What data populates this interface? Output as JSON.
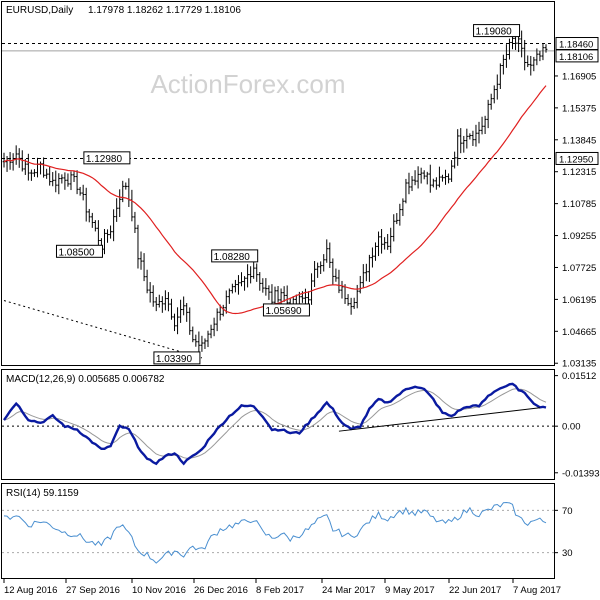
{
  "chart_data": [
    {
      "type": "candlestick",
      "panel": "price",
      "symbol_text": "EURUSD,Daily",
      "ohlc_text": "1.17978 1.18262 1.17729 1.18106",
      "watermark": "ActionForex.com",
      "ylim": [
        1.0305,
        1.2045
      ],
      "y_ticks": [
        "1.18106",
        "1.16905",
        "1.15375",
        "1.13845",
        "1.12315",
        "1.10785",
        "1.09255",
        "1.07725",
        "1.06195",
        "1.04665",
        "1.03135"
      ],
      "y_tick_values": [
        1.18106,
        1.16905,
        1.15375,
        1.13845,
        1.12315,
        1.10785,
        1.09255,
        1.07725,
        1.06195,
        1.04665,
        1.03135
      ],
      "horizontal_levels": [
        {
          "value": 1.1846,
          "label": "1.18460",
          "style": "dashed"
        },
        {
          "value": 1.1295,
          "label": "1.12950",
          "style": "dashed"
        },
        {
          "value": 1.18106,
          "label": "1.18106",
          "style": "solid-grey"
        }
      ],
      "annotations": [
        {
          "label": "1.19080",
          "value": 1.1908,
          "bar": 168
        },
        {
          "label": "1.12980",
          "value": 1.1298,
          "bar": 42
        },
        {
          "label": "1.08500",
          "value": 1.085,
          "bar": 33
        },
        {
          "label": "1.08280",
          "value": 1.0828,
          "bar": 82
        },
        {
          "label": "1.05690",
          "value": 1.0569,
          "bar": 99
        },
        {
          "label": "1.03390",
          "value": 1.0339,
          "bar": 65
        }
      ],
      "trendline": {
        "from": {
          "bar": 0,
          "value": 1.0614
        },
        "to": {
          "bar": 65,
          "value": 1.0339
        }
      },
      "moving_average_color": "#e02020",
      "candle_color": "#000000",
      "keypoints": [
        [
          0,
          1.128
        ],
        [
          4,
          1.132
        ],
        [
          8,
          1.122
        ],
        [
          12,
          1.126
        ],
        [
          16,
          1.118
        ],
        [
          20,
          1.121
        ],
        [
          24,
          1.117
        ],
        [
          28,
          1.102
        ],
        [
          32,
          1.088
        ],
        [
          35,
          1.096
        ],
        [
          38,
          1.112
        ],
        [
          40,
          1.117
        ],
        [
          42,
          1.104
        ],
        [
          44,
          1.083
        ],
        [
          47,
          1.068
        ],
        [
          50,
          1.058
        ],
        [
          53,
          1.064
        ],
        [
          56,
          1.052
        ],
        [
          59,
          1.058
        ],
        [
          62,
          1.043
        ],
        [
          65,
          1.039
        ],
        [
          68,
          1.049
        ],
        [
          71,
          1.057
        ],
        [
          74,
          1.064
        ],
        [
          78,
          1.069
        ],
        [
          82,
          1.078
        ],
        [
          85,
          1.068
        ],
        [
          88,
          1.062
        ],
        [
          91,
          1.066
        ],
        [
          94,
          1.058
        ],
        [
          97,
          1.061
        ],
        [
          100,
          1.064
        ],
        [
          103,
          1.079
        ],
        [
          106,
          1.085
        ],
        [
          108,
          1.072
        ],
        [
          111,
          1.066
        ],
        [
          114,
          1.061
        ],
        [
          117,
          1.068
        ],
        [
          120,
          1.082
        ],
        [
          123,
          1.092
        ],
        [
          126,
          1.089
        ],
        [
          129,
          1.102
        ],
        [
          132,
          1.117
        ],
        [
          135,
          1.121
        ],
        [
          138,
          1.124
        ],
        [
          140,
          1.117
        ],
        [
          143,
          1.118
        ],
        [
          146,
          1.121
        ],
        [
          149,
          1.138
        ],
        [
          152,
          1.142
        ],
        [
          155,
          1.141
        ],
        [
          158,
          1.148
        ],
        [
          161,
          1.163
        ],
        [
          164,
          1.176
        ],
        [
          167,
          1.186
        ],
        [
          169,
          1.184
        ],
        [
          171,
          1.176
        ],
        [
          173,
          1.173
        ],
        [
          175,
          1.177
        ],
        [
          178,
          1.181
        ]
      ]
    },
    {
      "type": "line",
      "panel": "macd",
      "title": "MACD(12,26,9) 0.005685 0.006782",
      "ylim": [
        -0.0155,
        0.0162
      ],
      "y_ticks": [
        "0.01512",
        "0.00",
        "-0.013938"
      ],
      "y_tick_values": [
        0.01512,
        0.0,
        -0.013938
      ],
      "series": [
        {
          "role": "macd",
          "color": "#0a1aa0"
        },
        {
          "role": "signal",
          "color": "#999999"
        }
      ],
      "trendline": {
        "from": {
          "bar": 110,
          "value": -0.0015
        },
        "to": {
          "bar": 176,
          "value": 0.0055
        }
      },
      "keypoints": [
        [
          0,
          0.002
        ],
        [
          4,
          0.007
        ],
        [
          8,
          0.002
        ],
        [
          12,
          0.001
        ],
        [
          16,
          0.003
        ],
        [
          20,
          0.0
        ],
        [
          24,
          -0.001
        ],
        [
          28,
          -0.004
        ],
        [
          32,
          -0.007
        ],
        [
          35,
          -0.006
        ],
        [
          38,
          0.0
        ],
        [
          41,
          -0.001
        ],
        [
          44,
          -0.006
        ],
        [
          47,
          -0.01
        ],
        [
          50,
          -0.011
        ],
        [
          53,
          -0.009
        ],
        [
          56,
          -0.008
        ],
        [
          59,
          -0.011
        ],
        [
          62,
          -0.009
        ],
        [
          65,
          -0.007
        ],
        [
          68,
          -0.003
        ],
        [
          71,
          0.0
        ],
        [
          74,
          0.003
        ],
        [
          78,
          0.006
        ],
        [
          82,
          0.006
        ],
        [
          85,
          0.003
        ],
        [
          88,
          -0.001
        ],
        [
          91,
          -0.001
        ],
        [
          94,
          -0.002
        ],
        [
          97,
          -0.002
        ],
        [
          100,
          0.001
        ],
        [
          103,
          0.004
        ],
        [
          106,
          0.007
        ],
        [
          108,
          0.005
        ],
        [
          111,
          0.001
        ],
        [
          114,
          -0.001
        ],
        [
          117,
          0.0
        ],
        [
          120,
          0.005
        ],
        [
          123,
          0.008
        ],
        [
          126,
          0.007
        ],
        [
          129,
          0.009
        ],
        [
          132,
          0.011
        ],
        [
          135,
          0.012
        ],
        [
          138,
          0.011
        ],
        [
          141,
          0.008
        ],
        [
          144,
          0.004
        ],
        [
          147,
          0.003
        ],
        [
          150,
          0.005
        ],
        [
          153,
          0.006
        ],
        [
          156,
          0.006
        ],
        [
          159,
          0.009
        ],
        [
          162,
          0.011
        ],
        [
          165,
          0.012
        ],
        [
          167,
          0.0125
        ],
        [
          169,
          0.011
        ],
        [
          172,
          0.009
        ],
        [
          175,
          0.006
        ],
        [
          178,
          0.0057
        ]
      ]
    },
    {
      "type": "line",
      "panel": "rsi",
      "title": "RSI(14) 59.1159",
      "ylim": [
        7,
        93
      ],
      "y_ticks": [
        "70",
        "30"
      ],
      "y_tick_values": [
        70,
        30
      ],
      "levels": [
        70,
        30
      ],
      "series": [
        {
          "role": "rsi",
          "color": "#4a8fd0"
        }
      ],
      "keypoints": [
        [
          0,
          62
        ],
        [
          4,
          66
        ],
        [
          8,
          56
        ],
        [
          12,
          60
        ],
        [
          16,
          55
        ],
        [
          20,
          49
        ],
        [
          24,
          47
        ],
        [
          28,
          40
        ],
        [
          32,
          37
        ],
        [
          35,
          45
        ],
        [
          38,
          57
        ],
        [
          41,
          48
        ],
        [
          44,
          32
        ],
        [
          47,
          28
        ],
        [
          50,
          22
        ],
        [
          53,
          27
        ],
        [
          56,
          32
        ],
        [
          59,
          28
        ],
        [
          62,
          36
        ],
        [
          65,
          32
        ],
        [
          68,
          44
        ],
        [
          71,
          52
        ],
        [
          74,
          55
        ],
        [
          78,
          58
        ],
        [
          82,
          62
        ],
        [
          85,
          49
        ],
        [
          88,
          44
        ],
        [
          91,
          48
        ],
        [
          94,
          43
        ],
        [
          97,
          47
        ],
        [
          100,
          52
        ],
        [
          103,
          60
        ],
        [
          106,
          64
        ],
        [
          108,
          52
        ],
        [
          111,
          48
        ],
        [
          114,
          45
        ],
        [
          117,
          51
        ],
        [
          120,
          60
        ],
        [
          123,
          66
        ],
        [
          126,
          62
        ],
        [
          129,
          68
        ],
        [
          132,
          70
        ],
        [
          135,
          67
        ],
        [
          138,
          69
        ],
        [
          141,
          62
        ],
        [
          144,
          58
        ],
        [
          147,
          59
        ],
        [
          150,
          66
        ],
        [
          153,
          71
        ],
        [
          156,
          66
        ],
        [
          159,
          70
        ],
        [
          162,
          74
        ],
        [
          165,
          76
        ],
        [
          167,
          73
        ],
        [
          169,
          63
        ],
        [
          172,
          58
        ],
        [
          175,
          61
        ],
        [
          178,
          59
        ]
      ]
    }
  ],
  "x_axis": {
    "labels": [
      "12 Aug 2016",
      "27 Sep 2016",
      "10 Nov 2016",
      "26 Dec 2016",
      "8 Feb 2017",
      "24 Mar 2017",
      "9 May 2017",
      "22 Jun 2017",
      "7 Aug 2017"
    ],
    "label_bars": [
      0,
      33,
      64,
      96,
      127,
      159,
      191,
      223,
      255
    ]
  },
  "bar_count": 179
}
